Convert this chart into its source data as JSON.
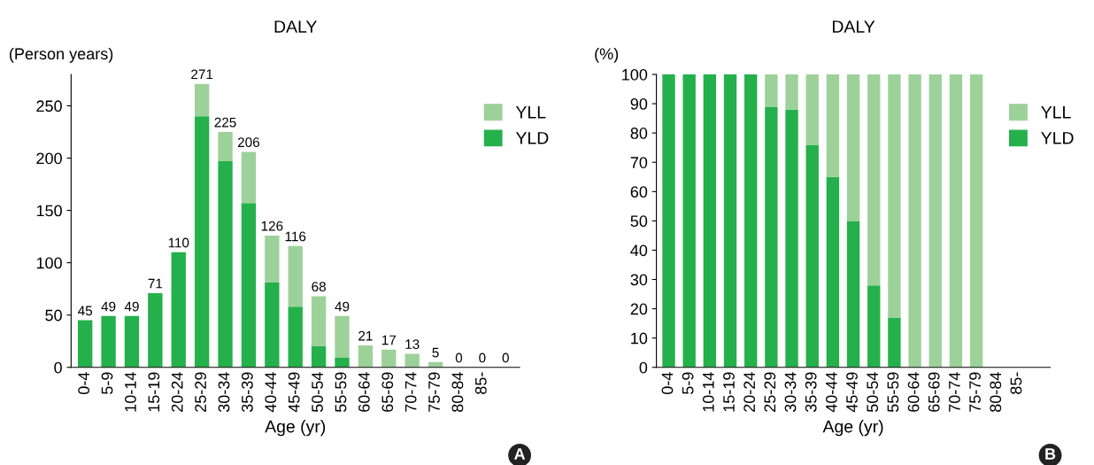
{
  "chart_data": [
    {
      "type": "bar",
      "title": "DALY",
      "xlabel": "Age (yr)",
      "ylabel": "(Person years)",
      "stacked": true,
      "legend": "top right",
      "grid": false,
      "categories": [
        "0-4",
        "5-9",
        "10-14",
        "15-19",
        "20-24",
        "25-29",
        "30-34",
        "35-39",
        "40-44",
        "45-49",
        "50-54",
        "55-59",
        "60-64",
        "65-69",
        "70-74",
        "75-79",
        "80-84",
        "85-",
        null
      ],
      "series": [
        {
          "name": "YLD",
          "color": "#24b04b",
          "values": [
            45,
            49,
            49,
            71,
            110,
            240,
            197,
            157,
            81,
            58,
            20,
            9,
            0,
            0,
            0,
            0,
            0,
            0,
            0
          ]
        },
        {
          "name": "YLL",
          "color": "#9dd19a",
          "values": [
            0,
            0,
            0,
            0,
            0,
            31,
            28,
            49,
            45,
            58,
            48,
            40,
            21,
            17,
            13,
            5,
            0,
            0,
            0
          ]
        }
      ],
      "totals": [
        "45",
        "49",
        "49",
        "71",
        "110",
        "271",
        "225",
        "206",
        "126",
        "116",
        "68",
        "49",
        "21",
        "17",
        "13",
        "5",
        "0",
        "0",
        "0"
      ],
      "ylim": [
        0,
        280
      ],
      "yticks": [
        0,
        50,
        100,
        150,
        200,
        250
      ],
      "annotations": [
        "A"
      ]
    },
    {
      "type": "bar",
      "title": "DALY",
      "xlabel": "Age (yr)",
      "ylabel": "(%)",
      "stacked": true,
      "legend": "top right",
      "grid": false,
      "categories": [
        "0-4",
        "5-9",
        "10-14",
        "15-19",
        "20-24",
        "25-29",
        "30-34",
        "35-39",
        "40-44",
        "45-49",
        "50-54",
        "55-59",
        "60-64",
        "65-69",
        "70-74",
        "75-79",
        "80-84",
        "85-"
      ],
      "series": [
        {
          "name": "YLD",
          "color": "#24b04b",
          "values": [
            100,
            100,
            100,
            100,
            100,
            89,
            88,
            76,
            65,
            50,
            28,
            17,
            0,
            0,
            0,
            0,
            0,
            0
          ]
        },
        {
          "name": "YLL",
          "color": "#9dd19a",
          "values": [
            0,
            0,
            0,
            0,
            0,
            11,
            12,
            24,
            35,
            50,
            72,
            83,
            100,
            100,
            100,
            100,
            0,
            0
          ]
        }
      ],
      "ylim": [
        0,
        100
      ],
      "yticks": [
        0,
        10,
        20,
        30,
        40,
        50,
        60,
        70,
        80,
        90,
        100
      ],
      "annotations": [
        "B"
      ]
    }
  ]
}
